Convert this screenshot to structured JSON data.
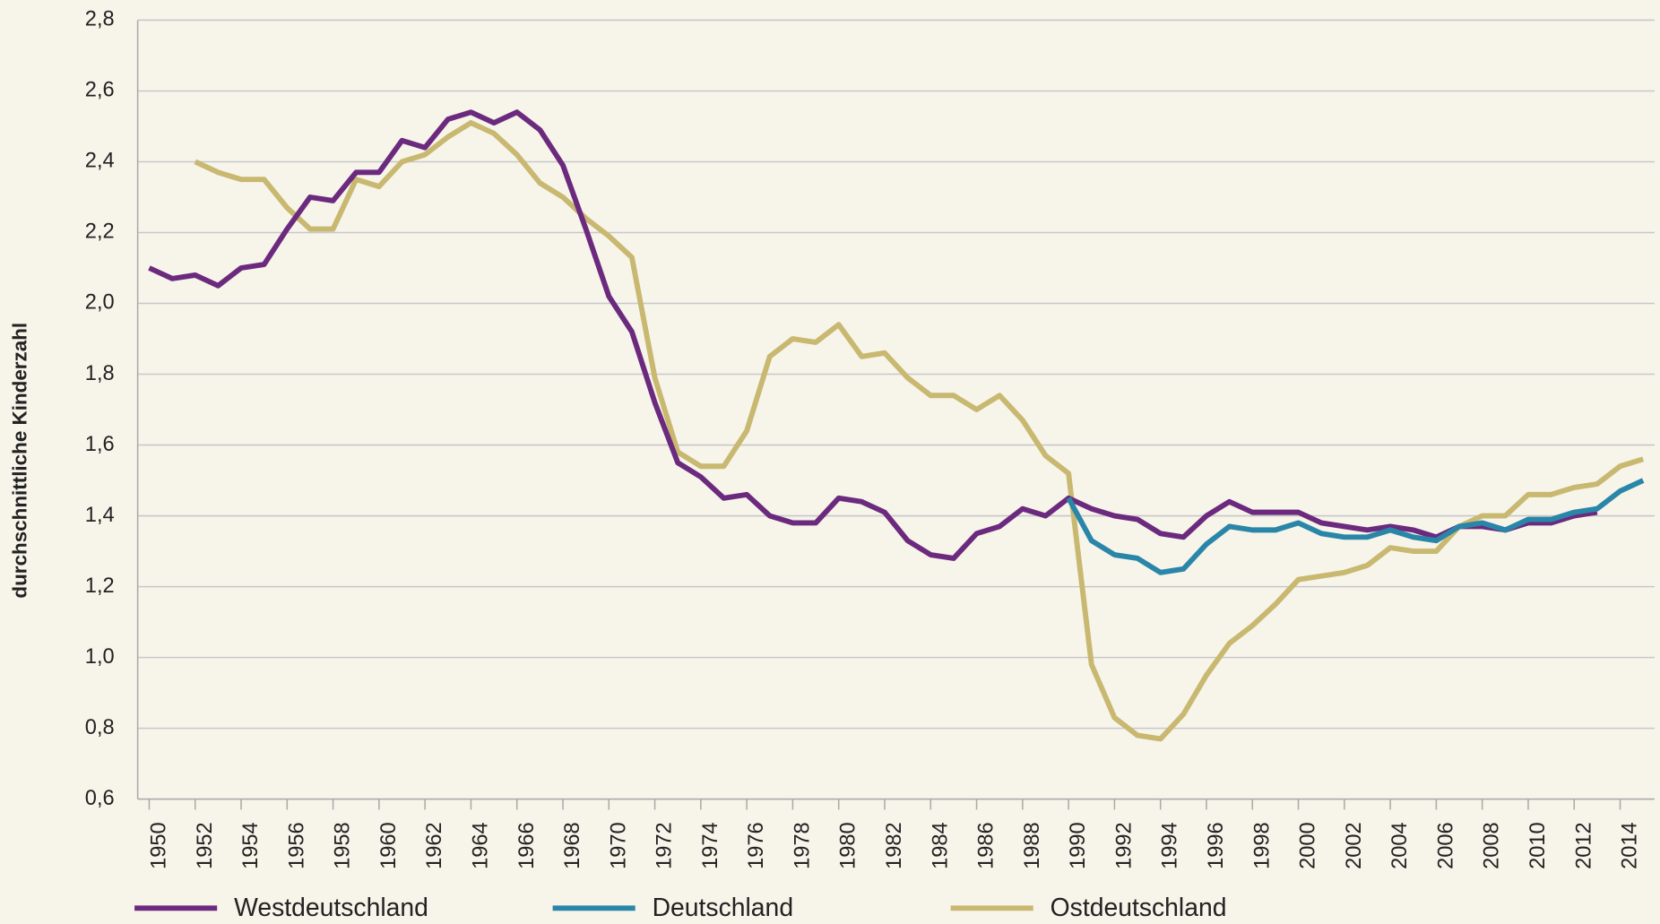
{
  "chart_data": {
    "type": "line",
    "y_label": "durchschnittliche Kinderzahl",
    "x": [
      1950,
      1951,
      1952,
      1953,
      1954,
      1955,
      1956,
      1957,
      1958,
      1959,
      1960,
      1961,
      1962,
      1963,
      1964,
      1965,
      1966,
      1967,
      1968,
      1969,
      1970,
      1971,
      1972,
      1973,
      1974,
      1975,
      1976,
      1977,
      1978,
      1979,
      1980,
      1981,
      1982,
      1983,
      1984,
      1985,
      1986,
      1987,
      1988,
      1989,
      1990,
      1991,
      1992,
      1993,
      1994,
      1995,
      1996,
      1997,
      1998,
      1999,
      2000,
      2001,
      2002,
      2003,
      2004,
      2005,
      2006,
      2007,
      2008,
      2009,
      2010,
      2011,
      2012,
      2013,
      2014,
      2015
    ],
    "xlim": [
      1949.5,
      2015.5
    ],
    "xticks": [
      1950,
      1952,
      1954,
      1956,
      1958,
      1960,
      1962,
      1964,
      1966,
      1968,
      1970,
      1972,
      1974,
      1976,
      1978,
      1980,
      1982,
      1984,
      1986,
      1988,
      1990,
      1992,
      1994,
      1996,
      1998,
      2000,
      2002,
      2004,
      2006,
      2008,
      2010,
      2012,
      2014
    ],
    "ylim": [
      0.6,
      2.8
    ],
    "yticks": [
      {
        "value": 0.6,
        "label": "0,6"
      },
      {
        "value": 0.8,
        "label": "0,8"
      },
      {
        "value": 1.0,
        "label": "1,0"
      },
      {
        "value": 1.2,
        "label": "1,2"
      },
      {
        "value": 1.4,
        "label": "1,4"
      },
      {
        "value": 1.6,
        "label": "1,6"
      },
      {
        "value": 1.8,
        "label": "1,8"
      },
      {
        "value": 2.0,
        "label": "2,0"
      },
      {
        "value": 2.2,
        "label": "2,2"
      },
      {
        "value": 2.4,
        "label": "2,4"
      },
      {
        "value": 2.6,
        "label": "2,6"
      },
      {
        "value": 2.8,
        "label": "2,8"
      }
    ],
    "grid": true,
    "legend": "bottom",
    "series": [
      {
        "name": "Westdeutschland",
        "color": "#6b2a7e",
        "values": [
          2.1,
          2.07,
          2.08,
          2.05,
          2.1,
          2.11,
          2.21,
          2.3,
          2.29,
          2.37,
          2.37,
          2.46,
          2.44,
          2.52,
          2.54,
          2.51,
          2.54,
          2.49,
          2.39,
          2.21,
          2.02,
          1.92,
          1.72,
          1.55,
          1.51,
          1.45,
          1.46,
          1.4,
          1.38,
          1.38,
          1.45,
          1.44,
          1.41,
          1.33,
          1.29,
          1.28,
          1.35,
          1.37,
          1.42,
          1.4,
          1.45,
          1.42,
          1.4,
          1.39,
          1.35,
          1.34,
          1.4,
          1.44,
          1.41,
          1.41,
          1.41,
          1.38,
          1.37,
          1.36,
          1.37,
          1.36,
          1.34,
          1.37,
          1.37,
          1.36,
          1.38,
          1.38,
          1.4,
          1.41,
          null,
          null
        ]
      },
      {
        "name": "Deutschland",
        "color": "#2a86a8",
        "values": [
          null,
          null,
          null,
          null,
          null,
          null,
          null,
          null,
          null,
          null,
          null,
          null,
          null,
          null,
          null,
          null,
          null,
          null,
          null,
          null,
          null,
          null,
          null,
          null,
          null,
          null,
          null,
          null,
          null,
          null,
          null,
          null,
          null,
          null,
          null,
          null,
          null,
          null,
          null,
          null,
          1.45,
          1.33,
          1.29,
          1.28,
          1.24,
          1.25,
          1.32,
          1.37,
          1.36,
          1.36,
          1.38,
          1.35,
          1.34,
          1.34,
          1.36,
          1.34,
          1.33,
          1.37,
          1.38,
          1.36,
          1.39,
          1.39,
          1.41,
          1.42,
          1.47,
          1.5
        ]
      },
      {
        "name": "Ostdeutschland",
        "color": "#c8b870",
        "values": [
          null,
          null,
          2.4,
          2.37,
          2.35,
          2.35,
          2.27,
          2.21,
          2.21,
          2.35,
          2.33,
          2.4,
          2.42,
          2.47,
          2.51,
          2.48,
          2.42,
          2.34,
          2.3,
          2.24,
          2.19,
          2.13,
          1.79,
          1.58,
          1.54,
          1.54,
          1.64,
          1.85,
          1.9,
          1.89,
          1.94,
          1.85,
          1.86,
          1.79,
          1.74,
          1.74,
          1.7,
          1.74,
          1.67,
          1.57,
          1.52,
          0.98,
          0.83,
          0.78,
          0.77,
          0.84,
          0.95,
          1.04,
          1.09,
          1.15,
          1.22,
          1.23,
          1.24,
          1.26,
          1.31,
          1.3,
          1.3,
          1.37,
          1.4,
          1.4,
          1.46,
          1.46,
          1.48,
          1.49,
          1.54,
          1.56
        ]
      }
    ]
  }
}
